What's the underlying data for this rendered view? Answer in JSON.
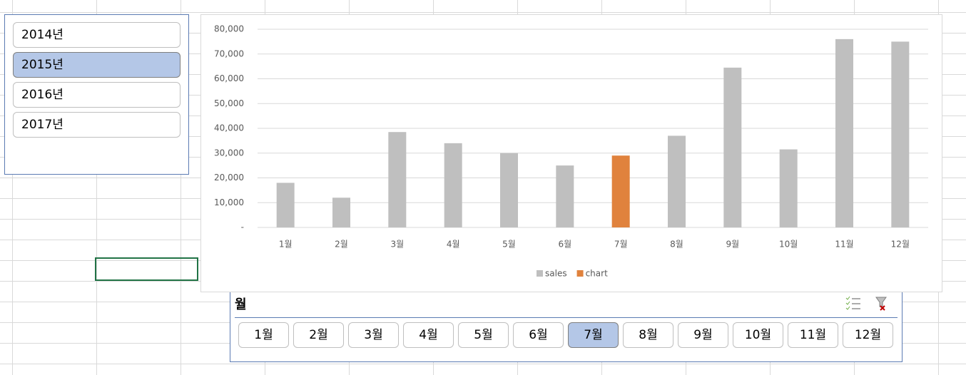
{
  "year_slicer": {
    "items": [
      "2014년",
      "2015년",
      "2016년",
      "2017년"
    ],
    "selected_index": 1
  },
  "month_slicer": {
    "title": "월",
    "items": [
      "1월",
      "2월",
      "3월",
      "4월",
      "5월",
      "6월",
      "7월",
      "8월",
      "9월",
      "10월",
      "11월",
      "12월"
    ],
    "selected_index": 6
  },
  "chart_data": {
    "type": "bar",
    "stacked": true,
    "categories": [
      "1월",
      "2월",
      "3월",
      "4월",
      "5월",
      "6월",
      "7월",
      "8월",
      "9월",
      "10월",
      "11월",
      "12월"
    ],
    "series": [
      {
        "name": "sales",
        "color": "#bfbfbf",
        "values": [
          18000,
          12000,
          38500,
          34000,
          30000,
          25000,
          null,
          37000,
          64500,
          31500,
          76000,
          75000
        ]
      },
      {
        "name": "chart",
        "color": "#e0823d",
        "values": [
          null,
          null,
          null,
          null,
          null,
          null,
          29000,
          null,
          null,
          null,
          null,
          null
        ]
      }
    ],
    "ylim": [
      0,
      80000
    ],
    "yticks": [
      {
        "value": 0,
        "label": "-"
      },
      {
        "value": 10000,
        "label": "10,000"
      },
      {
        "value": 20000,
        "label": "20,000"
      },
      {
        "value": 30000,
        "label": "30,000"
      },
      {
        "value": 40000,
        "label": "40,000"
      },
      {
        "value": 50000,
        "label": "50,000"
      },
      {
        "value": 60000,
        "label": "60,000"
      },
      {
        "value": 70000,
        "label": "70,000"
      },
      {
        "value": 80000,
        "label": "80,000"
      }
    ],
    "grid": true,
    "legend": "bottom"
  }
}
